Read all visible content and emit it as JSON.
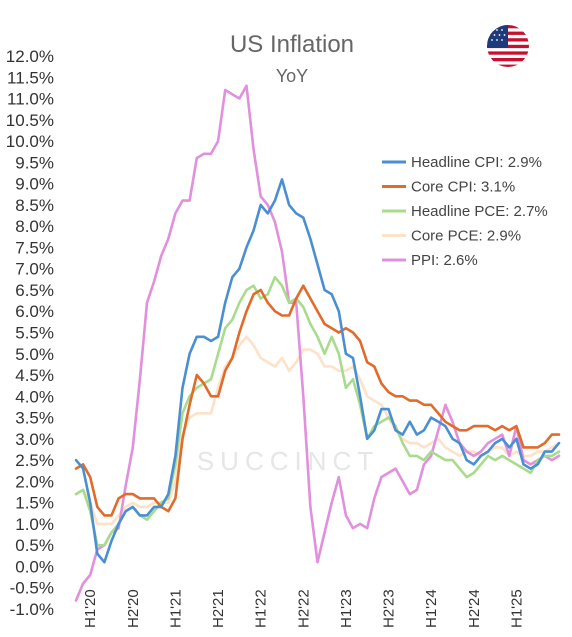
{
  "chart_data": {
    "type": "line",
    "title": "US Inflation",
    "subtitle": "YoY",
    "watermark": "SUCCINCT",
    "flag_icon": "us-flag-icon",
    "ylim": [
      -1.0,
      12.0
    ],
    "y_ticks": [
      "12.0%",
      "11.5%",
      "11.0%",
      "10.5%",
      "10.0%",
      "9.5%",
      "9.0%",
      "8.5%",
      "8.0%",
      "7.5%",
      "7.0%",
      "6.5%",
      "6.0%",
      "5.5%",
      "5.0%",
      "4.5%",
      "4.0%",
      "3.5%",
      "3.0%",
      "2.5%",
      "2.0%",
      "1.5%",
      "1.0%",
      "0.5%",
      "0.0%",
      "-0.5%",
      "-1.0%"
    ],
    "x_ticks": [
      {
        "label": "H1'20",
        "month": 2
      },
      {
        "label": "H2'20",
        "month": 8
      },
      {
        "label": "H1'21",
        "month": 14
      },
      {
        "label": "H2'21",
        "month": 20
      },
      {
        "label": "H1'22",
        "month": 26
      },
      {
        "label": "H2'22",
        "month": 32
      },
      {
        "label": "H1'23",
        "month": 38
      },
      {
        "label": "H2'23",
        "month": 44
      },
      {
        "label": "H1'24",
        "month": 50
      },
      {
        "label": "H2'24",
        "month": 56
      },
      {
        "label": "H1'25",
        "month": 62
      }
    ],
    "legend_position": "right",
    "series": [
      {
        "name": "Headline CPI: 2.9%",
        "color": "#4a8fd2",
        "values": [
          2.5,
          2.3,
          1.5,
          0.3,
          0.1,
          0.6,
          1.0,
          1.3,
          1.4,
          1.2,
          1.2,
          1.4,
          1.4,
          1.7,
          2.6,
          4.2,
          5.0,
          5.4,
          5.4,
          5.3,
          5.4,
          6.2,
          6.8,
          7.0,
          7.5,
          7.9,
          8.5,
          8.3,
          8.6,
          9.1,
          8.5,
          8.3,
          8.2,
          7.7,
          7.1,
          6.5,
          6.4,
          6.0,
          5.0,
          4.9,
          4.0,
          3.0,
          3.2,
          3.7,
          3.7,
          3.2,
          3.1,
          3.4,
          3.1,
          3.2,
          3.5,
          3.4,
          3.3,
          3.0,
          2.9,
          2.5,
          2.4,
          2.6,
          2.7,
          2.9,
          3.0,
          2.8,
          3.0,
          2.4,
          2.3,
          2.4,
          2.7,
          2.7,
          2.9
        ]
      },
      {
        "name": "Core CPI: 3.1%",
        "color": "#e06b2a",
        "values": [
          2.3,
          2.4,
          2.1,
          1.4,
          1.2,
          1.2,
          1.6,
          1.7,
          1.7,
          1.6,
          1.6,
          1.6,
          1.4,
          1.3,
          1.6,
          3.0,
          3.8,
          4.5,
          4.3,
          4.0,
          4.0,
          4.6,
          4.9,
          5.5,
          6.0,
          6.4,
          6.5,
          6.2,
          6.0,
          5.9,
          5.9,
          6.3,
          6.6,
          6.3,
          6.0,
          5.7,
          5.6,
          5.5,
          5.6,
          5.5,
          5.3,
          4.8,
          4.7,
          4.3,
          4.1,
          4.0,
          4.0,
          3.9,
          3.9,
          3.8,
          3.8,
          3.6,
          3.4,
          3.3,
          3.2,
          3.2,
          3.3,
          3.3,
          3.3,
          3.2,
          3.3,
          3.2,
          3.3,
          2.8,
          2.8,
          2.8,
          2.9,
          3.1,
          3.1
        ]
      },
      {
        "name": "Headline PCE: 2.7%",
        "color": "#a8dc8c",
        "values": [
          1.7,
          1.8,
          1.3,
          0.5,
          0.5,
          0.8,
          1.0,
          1.3,
          1.4,
          1.2,
          1.1,
          1.3,
          1.5,
          1.6,
          2.4,
          3.6,
          4.0,
          4.2,
          4.3,
          4.4,
          5.0,
          5.6,
          5.8,
          6.2,
          6.5,
          6.6,
          6.3,
          6.4,
          6.8,
          6.6,
          6.2,
          6.3,
          6.1,
          5.7,
          5.4,
          5.0,
          5.4,
          5.0,
          4.2,
          4.4,
          3.8,
          3.0,
          3.3,
          3.4,
          3.5,
          3.3,
          2.9,
          2.6,
          2.6,
          2.5,
          2.7,
          2.6,
          2.5,
          2.5,
          2.3,
          2.1,
          2.2,
          2.4,
          2.6,
          2.5,
          2.6,
          2.5,
          2.4,
          2.3,
          2.2,
          2.5,
          2.6,
          2.6,
          2.7
        ]
      },
      {
        "name": "Core PCE: 2.9%",
        "color": "#fde1c8",
        "values": [
          1.7,
          1.8,
          1.5,
          1.0,
          1.0,
          1.0,
          1.2,
          1.4,
          1.5,
          1.4,
          1.4,
          1.5,
          1.5,
          1.5,
          2.0,
          3.1,
          3.5,
          3.6,
          3.6,
          3.6,
          4.2,
          4.7,
          4.9,
          5.2,
          5.4,
          5.2,
          4.9,
          4.8,
          4.7,
          4.9,
          4.6,
          4.8,
          5.1,
          5.1,
          5.0,
          4.7,
          4.7,
          4.6,
          4.6,
          4.7,
          4.4,
          4.0,
          3.9,
          3.8,
          3.5,
          3.2,
          3.0,
          2.9,
          2.9,
          2.8,
          2.9,
          3.0,
          2.8,
          2.7,
          2.6,
          2.7,
          2.7,
          2.6,
          2.7,
          2.8,
          2.8,
          2.6,
          2.7,
          2.6,
          2.6,
          2.7,
          2.7,
          2.8,
          2.9
        ]
      },
      {
        "name": "PPI: 2.6%",
        "color": "#e090dc",
        "values": [
          -0.8,
          -0.4,
          -0.2,
          0.4,
          0.5,
          0.8,
          0.9,
          1.9,
          2.8,
          4.4,
          6.2,
          6.7,
          7.3,
          7.7,
          8.3,
          8.6,
          8.6,
          9.6,
          9.7,
          9.7,
          10.0,
          11.2,
          11.1,
          11.0,
          11.3,
          9.8,
          8.7,
          8.5,
          8.1,
          7.4,
          6.2,
          6.2,
          4.0,
          1.4,
          0.1,
          0.8,
          1.5,
          2.1,
          1.2,
          0.9,
          1.0,
          0.9,
          1.6,
          2.1,
          2.2,
          2.3,
          2.0,
          1.7,
          1.8,
          2.4,
          2.6,
          3.2,
          3.8,
          3.4,
          2.9,
          2.7,
          2.6,
          2.7,
          2.9,
          3.0,
          3.1,
          2.6,
          3.3,
          2.5,
          2.4,
          2.5,
          2.6,
          2.5,
          2.6
        ]
      }
    ]
  }
}
